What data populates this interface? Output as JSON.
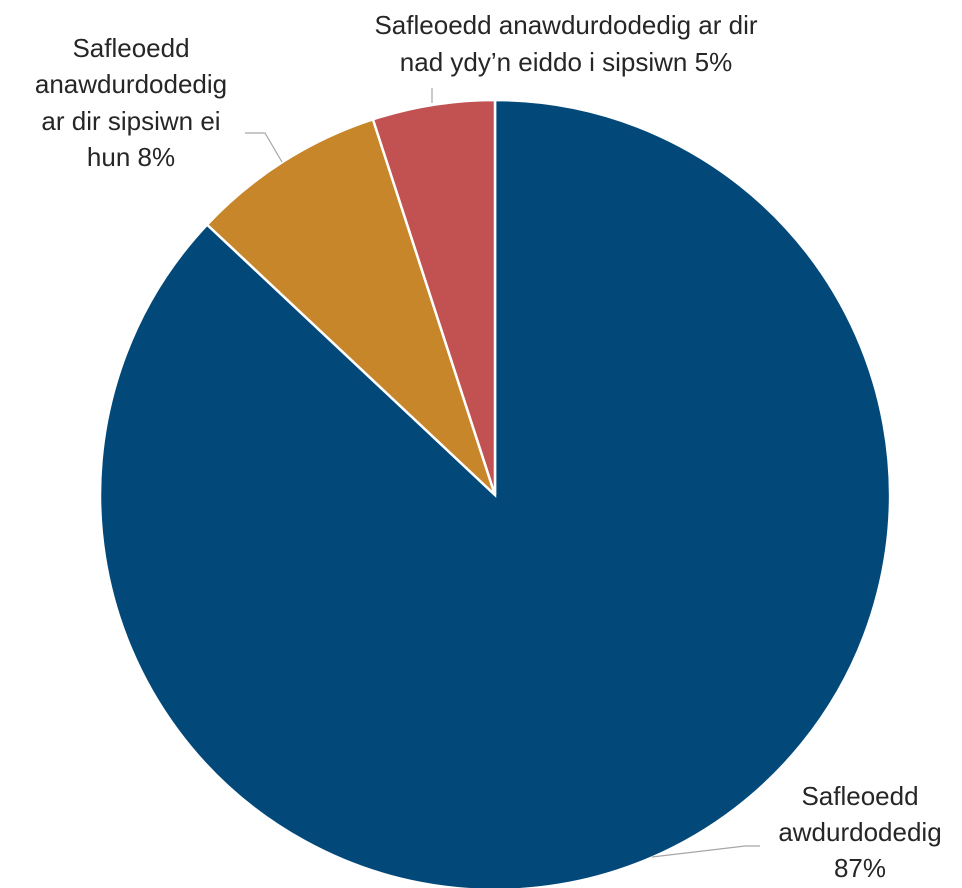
{
  "chart_data": {
    "type": "pie",
    "slices": [
      {
        "label": "Safleoedd awdurdodedig",
        "value": 87,
        "display": "87%",
        "color": "#02497A"
      },
      {
        "label": "Safleoedd anawdurdodedig ar dir sipsiwn ei hun",
        "value": 8,
        "display": "8%",
        "color": "#C7862A"
      },
      {
        "label": "Safleoedd anawdurdodedig ar dir nad ydy’n eiddo i sipsiwn",
        "value": 5,
        "display": "5%",
        "color": "#C25252"
      }
    ],
    "data_labels": [
      [
        "Safleoedd",
        "awdurdodedig",
        "87%"
      ],
      [
        "Safleoedd",
        "anawdurdodedig",
        "ar dir sipsiwn ei",
        "hun 8%"
      ],
      [
        "Safleoedd anawdurdodedig ar dir",
        "nad ydy’n eiddo i sipsiwn 5%"
      ]
    ],
    "start_angle": "12 o'clock",
    "direction": "clockwise",
    "legend": "none"
  }
}
